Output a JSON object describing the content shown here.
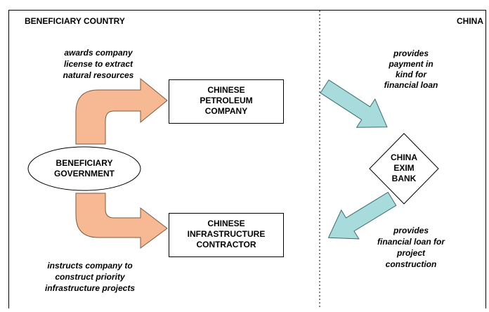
{
  "header": {
    "left": "BENEFICIARY COUNTRY",
    "right": "CHINA"
  },
  "nodes": [
    {
      "label": [
        "BENEFICIARY",
        "GOVERNMENT"
      ]
    },
    {
      "label": [
        "CHINESE",
        "PETROLEUM",
        "COMPANY"
      ]
    },
    {
      "label": [
        "CHINESE",
        "INFRASTRUCTURE",
        "CONTRACTOR"
      ]
    },
    {
      "label": [
        "CHINA",
        "EXIM",
        "BANK"
      ]
    }
  ],
  "annotations": [
    {
      "lines": [
        "awards company",
        "license to extract",
        "natural resources"
      ]
    },
    {
      "lines": [
        "provides",
        "payment in",
        "kind for",
        "financial loan"
      ]
    },
    {
      "lines": [
        "instructs company to",
        "construct priority",
        "infrastructure projects"
      ]
    },
    {
      "lines": [
        "provides",
        "financial loan for",
        "project",
        "construction"
      ]
    }
  ]
}
